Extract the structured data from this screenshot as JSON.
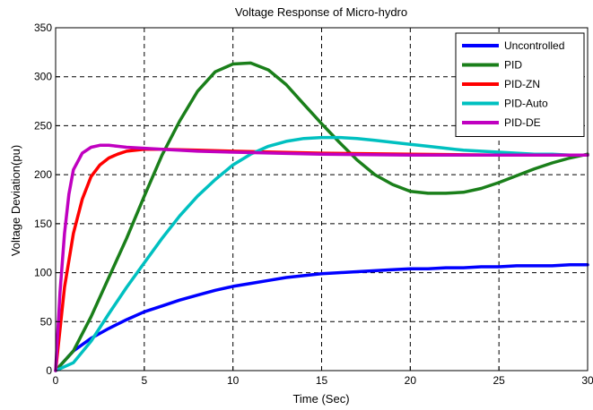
{
  "chart_data": {
    "type": "line",
    "title": "Voltage Response of Micro-hydro",
    "xlabel": "Time (Sec)",
    "ylabel": "Voltage Deviation(pu)",
    "xlim": [
      0,
      30
    ],
    "ylim": [
      0,
      350
    ],
    "xticks": [
      "0",
      "5",
      "10",
      "15",
      "20",
      "25",
      "30"
    ],
    "yticks": [
      "0",
      "50",
      "100",
      "150",
      "200",
      "250",
      "300",
      "350"
    ],
    "grid": true,
    "legend_position": "top-right",
    "series": [
      {
        "name": "Uncontrolled",
        "color": "#0000ff",
        "x": [
          0,
          1,
          2,
          3,
          4,
          5,
          6,
          7,
          8,
          9,
          10,
          11,
          12,
          13,
          14,
          15,
          16,
          17,
          18,
          19,
          20,
          21,
          22,
          23,
          24,
          25,
          26,
          27,
          28,
          29,
          30
        ],
        "y": [
          0,
          20,
          33,
          43,
          52,
          60,
          66,
          72,
          77,
          82,
          86,
          89,
          92,
          95,
          97,
          99,
          100,
          101,
          102,
          103,
          104,
          104,
          105,
          105,
          106,
          106,
          107,
          107,
          107,
          108,
          108
        ]
      },
      {
        "name": "PID",
        "color": "#1a7f1a",
        "x": [
          0,
          1,
          2,
          3,
          4,
          5,
          6,
          7,
          8,
          9,
          10,
          11,
          12,
          13,
          14,
          15,
          16,
          17,
          18,
          19,
          20,
          21,
          22,
          23,
          24,
          25,
          26,
          27,
          28,
          29,
          30
        ],
        "y": [
          0,
          20,
          55,
          95,
          135,
          178,
          220,
          255,
          285,
          305,
          313,
          314,
          307,
          292,
          272,
          252,
          233,
          215,
          200,
          190,
          183,
          181,
          181,
          182,
          186,
          192,
          199,
          206,
          212,
          217,
          221
        ]
      },
      {
        "name": "PID-ZN",
        "color": "#ff0000",
        "x": [
          0,
          0.5,
          1,
          1.5,
          2,
          2.5,
          3,
          3.5,
          4,
          5,
          6,
          8,
          10,
          15,
          20,
          25,
          30
        ],
        "y": [
          0,
          85,
          140,
          175,
          198,
          210,
          217,
          221,
          224,
          226,
          226,
          225,
          224,
          222,
          221,
          220,
          220
        ]
      },
      {
        "name": "PID-Auto",
        "color": "#00c0c0",
        "x": [
          0,
          1,
          2,
          3,
          4,
          5,
          6,
          7,
          8,
          9,
          10,
          11,
          12,
          13,
          14,
          15,
          16,
          17,
          18,
          19,
          20,
          21,
          22,
          23,
          24,
          25,
          26,
          27,
          28,
          29,
          30
        ],
        "y": [
          0,
          8,
          30,
          58,
          85,
          110,
          135,
          158,
          178,
          195,
          210,
          221,
          229,
          234,
          237,
          238,
          238,
          237,
          235,
          233,
          231,
          229,
          227,
          225,
          224,
          223,
          222,
          221,
          221,
          220,
          220
        ]
      },
      {
        "name": "PID-DE",
        "color": "#c000c0",
        "x": [
          0,
          0.25,
          0.5,
          0.75,
          1,
          1.5,
          2,
          2.5,
          3,
          3.5,
          4,
          5,
          6,
          8,
          10,
          15,
          20,
          25,
          30
        ],
        "y": [
          0,
          80,
          140,
          180,
          205,
          222,
          228,
          230,
          230,
          229,
          228,
          227,
          226,
          224,
          223,
          221,
          220,
          220,
          220
        ]
      }
    ]
  }
}
